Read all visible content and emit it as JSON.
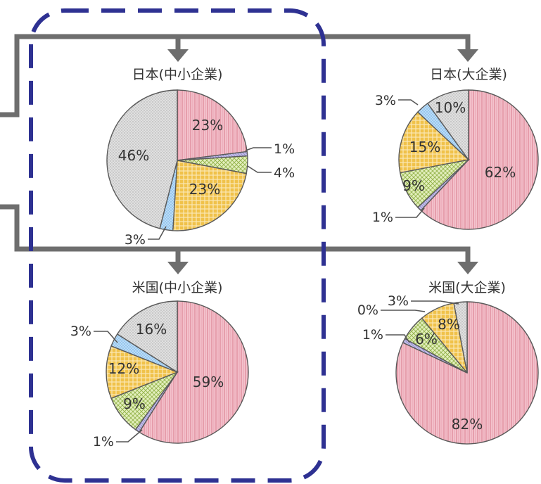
{
  "colors": {
    "pink": "#f2b7c3",
    "purple": "#b7b3e2",
    "green": "#d9e9b0",
    "orange": "#f0c24a",
    "blue": "#a9d2f4",
    "gray": "#dcdcdc",
    "frame": "#2e3192",
    "connector": "#6e6e6e"
  },
  "chart_data": [
    {
      "type": "pie",
      "title": "日本(中小企業)",
      "slices": [
        {
          "value": 23,
          "label": "23%",
          "color": "pink"
        },
        {
          "value": 1,
          "label": "1%",
          "color": "purple"
        },
        {
          "value": 4,
          "label": "4%",
          "color": "green"
        },
        {
          "value": 23,
          "label": "23%",
          "color": "orange"
        },
        {
          "value": 3,
          "label": "3%",
          "color": "blue"
        },
        {
          "value": 46,
          "label": "46%",
          "color": "gray"
        }
      ]
    },
    {
      "type": "pie",
      "title": "日本(大企業)",
      "slices": [
        {
          "value": 62,
          "label": "62%",
          "color": "pink"
        },
        {
          "value": 1,
          "label": "1%",
          "color": "purple"
        },
        {
          "value": 9,
          "label": "9%",
          "color": "green"
        },
        {
          "value": 15,
          "label": "15%",
          "color": "orange"
        },
        {
          "value": 3,
          "label": "3%",
          "color": "blue"
        },
        {
          "value": 10,
          "label": "10%",
          "color": "gray"
        }
      ]
    },
    {
      "type": "pie",
      "title": "米国(中小企業)",
      "slices": [
        {
          "value": 59,
          "label": "59%",
          "color": "pink"
        },
        {
          "value": 1,
          "label": "1%",
          "color": "purple"
        },
        {
          "value": 9,
          "label": "9%",
          "color": "green"
        },
        {
          "value": 12,
          "label": "12%",
          "color": "orange"
        },
        {
          "value": 3,
          "label": "3%",
          "color": "blue"
        },
        {
          "value": 16,
          "label": "16%",
          "color": "gray"
        }
      ]
    },
    {
      "type": "pie",
      "title": "米国(大企業)",
      "slices": [
        {
          "value": 82,
          "label": "82%",
          "color": "pink"
        },
        {
          "value": 1,
          "label": "1%",
          "color": "purple"
        },
        {
          "value": 6,
          "label": "6%",
          "color": "green"
        },
        {
          "value": 8,
          "label": "8%",
          "color": "orange"
        },
        {
          "value": 0,
          "label": "0%",
          "color": "blue"
        },
        {
          "value": 3,
          "label": "3%",
          "color": "gray"
        }
      ]
    }
  ]
}
